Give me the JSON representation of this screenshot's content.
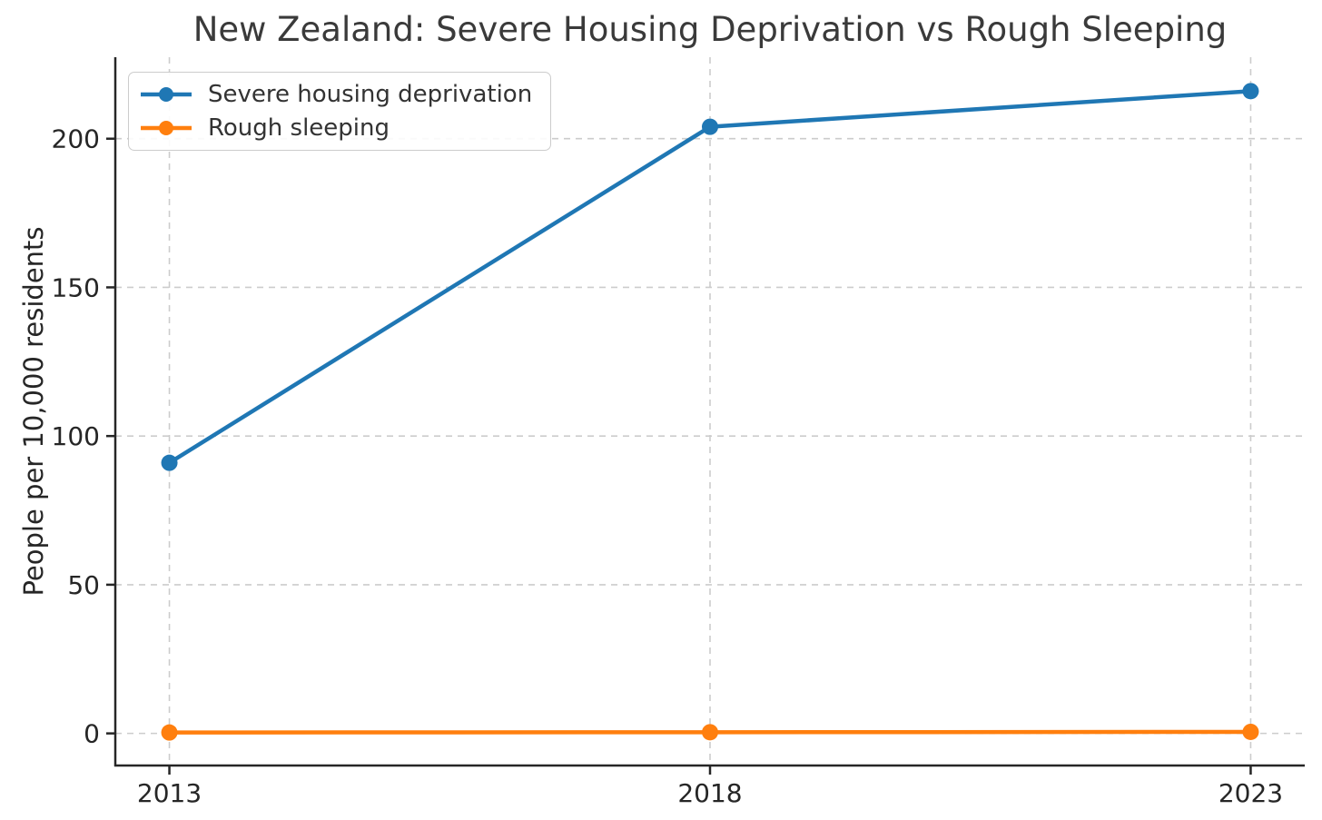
{
  "chart_data": {
    "type": "line",
    "title": "New Zealand: Severe Housing Deprivation vs Rough Sleeping",
    "xlabel": "",
    "ylabel": "People per 10,000 residents",
    "x": [
      2013,
      2018,
      2023
    ],
    "series": [
      {
        "name": "Severe housing deprivation",
        "values": [
          91,
          204,
          216
        ],
        "color": "#1f77b4"
      },
      {
        "name": "Rough sleeping",
        "values": [
          0.3,
          0.4,
          0.5
        ],
        "color": "#ff7f0e"
      }
    ],
    "xticks": {
      "values": [
        2013,
        2018,
        2023
      ],
      "labels": [
        "2013",
        "2018",
        "2023"
      ]
    },
    "yticks": {
      "values": [
        0,
        50,
        100,
        150,
        200
      ],
      "labels": [
        "0",
        "50",
        "100",
        "150",
        "200"
      ]
    },
    "xlim": [
      2012.5,
      2023.5
    ],
    "ylim": [
      -10.8,
      227.4
    ],
    "grid": true,
    "grid_style": "dashed",
    "legend_position": "upper-left",
    "marker": "circle"
  },
  "style": {
    "background": "#ffffff",
    "grid_color": "#cccccc",
    "spine_color": "#262626",
    "tick_label_color": "#262626",
    "title_color": "#3a3a3a",
    "legend_text_color": "#333333",
    "legend_border_color": "#cccccc",
    "line_width": 4.5,
    "marker_radius": 9
  }
}
